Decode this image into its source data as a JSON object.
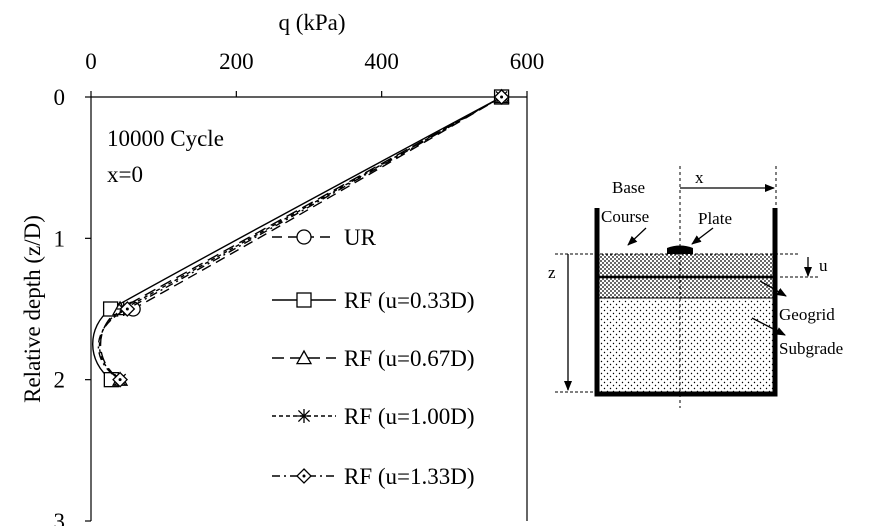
{
  "chart_data": {
    "type": "line",
    "xlabel": "q (kPa)",
    "ylabel": "Relative depth (z/D)",
    "xlim": [
      0,
      600
    ],
    "ylim": [
      0,
      3
    ],
    "x_ticks": [
      "0",
      "200",
      "400",
      "600"
    ],
    "y_ticks": [
      "0",
      "1",
      "2",
      "3"
    ],
    "x_axis_position": "top",
    "y_axis_reversed": true,
    "grid": false,
    "annotations": [
      "10000 Cycle",
      "x=0"
    ],
    "legend_position": "center-right",
    "series": [
      {
        "name": "UR",
        "marker": "circle",
        "dash": "dash",
        "x": [
          565,
          58
        ],
        "y": [
          0,
          1.5
        ]
      },
      {
        "name": "RF (u=0.33D)",
        "marker": "square",
        "dash": "solid",
        "x": [
          565,
          27,
          28
        ],
        "y": [
          0,
          1.5,
          2.0
        ]
      },
      {
        "name": "RF (u=0.67D)",
        "marker": "triangle",
        "dash": "longdash",
        "x": [
          565,
          40,
          40
        ],
        "y": [
          0,
          1.5,
          2.0
        ]
      },
      {
        "name": "RF (u=1.00D)",
        "marker": "asterisk",
        "dash": "shortdash",
        "x": [
          565,
          45,
          40
        ],
        "y": [
          0,
          1.5,
          2.0
        ]
      },
      {
        "name": "RF (u=1.33D)",
        "marker": "diamond",
        "dash": "dashdot",
        "x": [
          565,
          50,
          40
        ],
        "y": [
          0,
          1.5,
          2.0
        ]
      }
    ]
  },
  "diagram": {
    "labels": {
      "base": "Base",
      "course": "Course",
      "plate": "Plate",
      "x": "x",
      "u": "u",
      "z": "z",
      "geogrid": "Geogrid",
      "subgrade": "Subgrade"
    }
  }
}
